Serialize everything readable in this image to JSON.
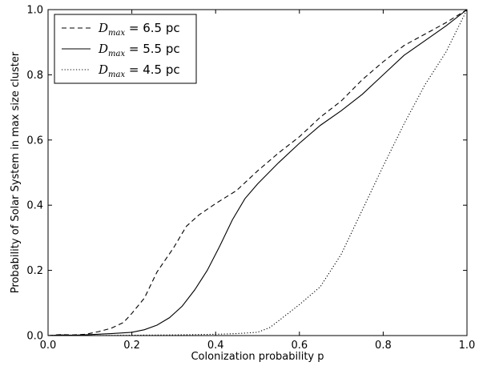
{
  "chart_data": {
    "type": "line",
    "xlabel": "Colonization probability p",
    "ylabel": "Probability of Solar System in max size cluster",
    "xlim": [
      0.0,
      1.0
    ],
    "ylim": [
      0.0,
      1.0
    ],
    "xticks": [
      "0.0",
      "0.2",
      "0.4",
      "0.6",
      "0.8",
      "1.0"
    ],
    "yticks": [
      "0.0",
      "0.2",
      "0.4",
      "0.6",
      "0.8",
      "1.0"
    ],
    "grid": false,
    "legend_position": "top-left",
    "series": [
      {
        "legend_var": "D",
        "legend_sub": "max",
        "legend_value": " = 6.5 pc",
        "style": "dashed",
        "points": [
          [
            0.0,
            0.0
          ],
          [
            0.03,
            0.003
          ],
          [
            0.06,
            0.002
          ],
          [
            0.09,
            0.004
          ],
          [
            0.12,
            0.012
          ],
          [
            0.15,
            0.022
          ],
          [
            0.18,
            0.04
          ],
          [
            0.2,
            0.068
          ],
          [
            0.23,
            0.115
          ],
          [
            0.26,
            0.195
          ],
          [
            0.3,
            0.27
          ],
          [
            0.33,
            0.335
          ],
          [
            0.36,
            0.37
          ],
          [
            0.4,
            0.405
          ],
          [
            0.45,
            0.445
          ],
          [
            0.5,
            0.505
          ],
          [
            0.55,
            0.56
          ],
          [
            0.6,
            0.61
          ],
          [
            0.65,
            0.67
          ],
          [
            0.7,
            0.72
          ],
          [
            0.75,
            0.785
          ],
          [
            0.8,
            0.84
          ],
          [
            0.85,
            0.89
          ],
          [
            0.9,
            0.925
          ],
          [
            0.95,
            0.96
          ],
          [
            1.0,
            1.0
          ]
        ]
      },
      {
        "legend_var": "D",
        "legend_sub": "max",
        "legend_value": " = 5.5 pc",
        "style": "solid",
        "points": [
          [
            0.0,
            0.0
          ],
          [
            0.03,
            0.002
          ],
          [
            0.06,
            0.001
          ],
          [
            0.1,
            0.003
          ],
          [
            0.15,
            0.006
          ],
          [
            0.2,
            0.01
          ],
          [
            0.23,
            0.018
          ],
          [
            0.26,
            0.032
          ],
          [
            0.29,
            0.055
          ],
          [
            0.32,
            0.09
          ],
          [
            0.35,
            0.14
          ],
          [
            0.38,
            0.2
          ],
          [
            0.41,
            0.275
          ],
          [
            0.44,
            0.355
          ],
          [
            0.47,
            0.42
          ],
          [
            0.5,
            0.465
          ],
          [
            0.55,
            0.53
          ],
          [
            0.6,
            0.59
          ],
          [
            0.65,
            0.645
          ],
          [
            0.7,
            0.69
          ],
          [
            0.75,
            0.74
          ],
          [
            0.8,
            0.8
          ],
          [
            0.85,
            0.86
          ],
          [
            0.9,
            0.905
          ],
          [
            0.95,
            0.95
          ],
          [
            1.0,
            1.0
          ]
        ]
      },
      {
        "legend_var": "D",
        "legend_sub": "max",
        "legend_value": " = 4.5 pc",
        "style": "dotted",
        "points": [
          [
            0.0,
            0.0
          ],
          [
            0.1,
            0.0
          ],
          [
            0.2,
            0.001
          ],
          [
            0.3,
            0.002
          ],
          [
            0.4,
            0.004
          ],
          [
            0.45,
            0.006
          ],
          [
            0.5,
            0.01
          ],
          [
            0.53,
            0.025
          ],
          [
            0.56,
            0.055
          ],
          [
            0.6,
            0.095
          ],
          [
            0.65,
            0.15
          ],
          [
            0.7,
            0.25
          ],
          [
            0.75,
            0.385
          ],
          [
            0.8,
            0.52
          ],
          [
            0.85,
            0.65
          ],
          [
            0.9,
            0.77
          ],
          [
            0.95,
            0.87
          ],
          [
            1.0,
            1.0
          ]
        ]
      }
    ]
  }
}
